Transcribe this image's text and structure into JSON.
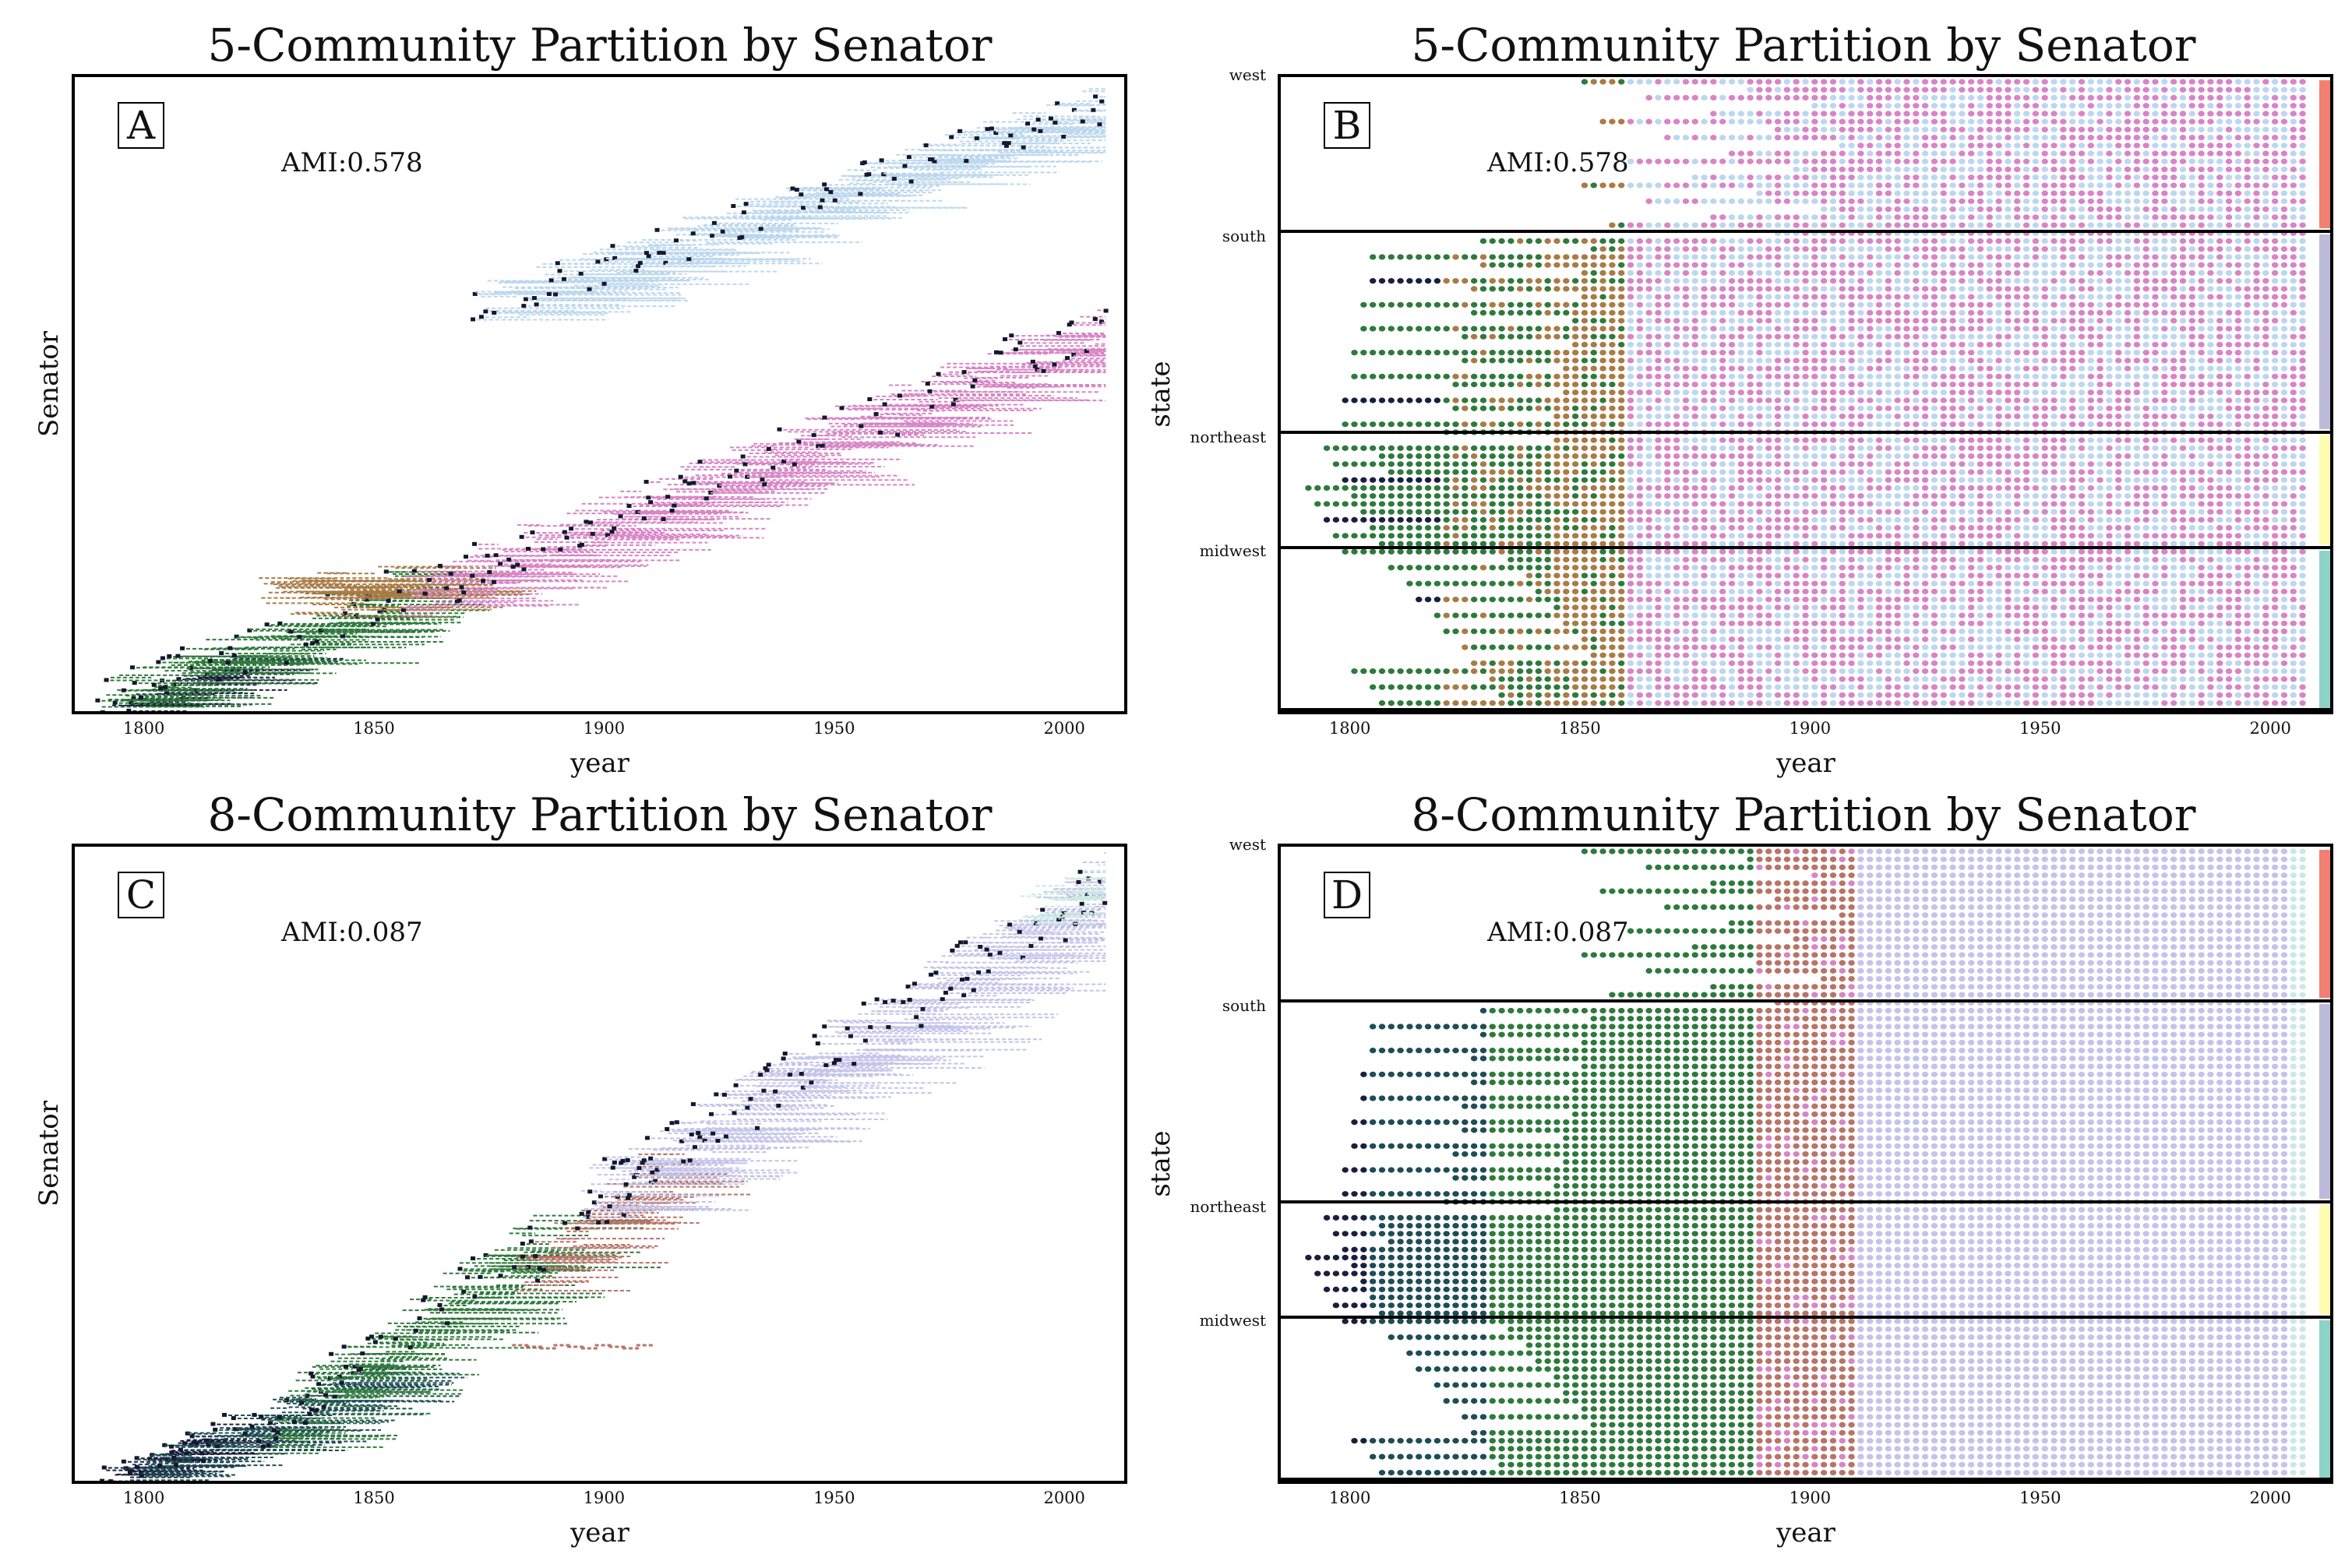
{
  "panels": [
    {
      "letter": "A",
      "title": "5-Community Partition by Senator",
      "ami": "AMI:0.578",
      "xlabel": "year",
      "ylabel": "Senator"
    },
    {
      "letter": "B",
      "title": "5-Community Partition by Senator",
      "ami": "AMI:0.578",
      "xlabel": "year",
      "ylabel": "state",
      "regions": [
        "west",
        "south",
        "northeast",
        "midwest"
      ]
    },
    {
      "letter": "C",
      "title": "8-Community Partition by Senator",
      "ami": "AMI:0.087",
      "xlabel": "year",
      "ylabel": "Senator"
    },
    {
      "letter": "D",
      "title": "8-Community Partition by Senator",
      "ami": "AMI:0.087",
      "xlabel": "year",
      "ylabel": "state",
      "regions": [
        "west",
        "south",
        "northeast",
        "midwest"
      ]
    }
  ],
  "colors": {
    "navy": "#1b1f3f",
    "teal_dark": "#1e4d55",
    "green": "#2e7a3c",
    "olive": "#6f7d2a",
    "brown": "#a97b45",
    "rust": "#b87468",
    "pink": "#d884c6",
    "lightblue": "#bcd7ee",
    "lavender": "#c4c3ea",
    "mint": "#cde9e4",
    "region_west": "#f28072",
    "region_south": "#bebad9",
    "region_northeast": "#fdfcb1",
    "region_midwest": "#8dd3c7"
  },
  "chart_data": [
    {
      "id": "A",
      "type": "scatter",
      "title": "5-Community Partition by Senator",
      "xlabel": "year",
      "ylabel": "Senator",
      "xlim": [
        1785,
        2013
      ],
      "xticks": [
        1800,
        1850,
        1900,
        1950,
        2000
      ],
      "annotation": "AMI:0.578",
      "series": [
        {
          "name": "community-navy",
          "x_range": [
            1789,
            1820
          ],
          "color": "navy"
        },
        {
          "name": "community-green",
          "x_range": [
            1789,
            1855
          ],
          "color": "green"
        },
        {
          "name": "community-brown",
          "x_range": [
            1825,
            1862
          ],
          "color": "brown"
        },
        {
          "name": "community-pink",
          "x_range": [
            1855,
            2009
          ],
          "color": "pink"
        },
        {
          "name": "community-lightblue",
          "x_range": [
            1871,
            2009
          ],
          "color": "lightblue"
        }
      ]
    },
    {
      "id": "B",
      "type": "scatter",
      "title": "5-Community Partition by Senator",
      "xlabel": "year",
      "ylabel": "state",
      "xlim": [
        1785,
        2013
      ],
      "xticks": [
        1800,
        1850,
        1900,
        1950,
        2000
      ],
      "annotation": "AMI:0.578",
      "regions": [
        "west",
        "south",
        "northeast",
        "midwest"
      ],
      "series": [
        {
          "name": "community-navy",
          "x_range": [
            1789,
            1820
          ],
          "color": "navy"
        },
        {
          "name": "community-green",
          "x_range": [
            1789,
            1845
          ],
          "color": "green"
        },
        {
          "name": "community-brown",
          "x_range": [
            1820,
            1861
          ],
          "color": "brown"
        },
        {
          "name": "community-pink",
          "x_range": [
            1856,
            2009
          ],
          "color": "pink"
        },
        {
          "name": "community-lightblue",
          "x_range": [
            1856,
            2009
          ],
          "color": "lightblue"
        }
      ]
    },
    {
      "id": "C",
      "type": "scatter",
      "title": "8-Community Partition by Senator",
      "xlabel": "year",
      "ylabel": "Senator",
      "xlim": [
        1785,
        2013
      ],
      "xticks": [
        1800,
        1850,
        1900,
        1950,
        2000
      ],
      "annotation": "AMI:0.087",
      "series": [
        {
          "name": "community-navy",
          "x_range": [
            1789,
            1815
          ],
          "color": "navy"
        },
        {
          "name": "community-teal",
          "x_range": [
            1795,
            1850
          ],
          "color": "teal_dark"
        },
        {
          "name": "community-green",
          "x_range": [
            1825,
            1885
          ],
          "color": "green"
        },
        {
          "name": "community-rust",
          "x_range": [
            1880,
            1912
          ],
          "color": "rust"
        },
        {
          "name": "community-lavender",
          "x_range": [
            1895,
            2009
          ],
          "color": "lavender"
        },
        {
          "name": "community-mint",
          "x_range": [
            1990,
            2009
          ],
          "color": "mint"
        }
      ]
    },
    {
      "id": "D",
      "type": "scatter",
      "title": "8-Community Partition by Senator",
      "xlabel": "year",
      "ylabel": "state",
      "xlim": [
        1785,
        2013
      ],
      "xticks": [
        1800,
        1850,
        1900,
        1950,
        2000
      ],
      "annotation": "AMI:0.087",
      "regions": [
        "west",
        "south",
        "northeast",
        "midwest"
      ],
      "series": [
        {
          "name": "community-navy",
          "x_range": [
            1789,
            1803
          ],
          "color": "navy"
        },
        {
          "name": "community-teal",
          "x_range": [
            1803,
            1830
          ],
          "color": "teal_dark"
        },
        {
          "name": "community-green",
          "x_range": [
            1830,
            1888
          ],
          "color": "green"
        },
        {
          "name": "community-rust",
          "x_range": [
            1888,
            1910
          ],
          "color": "rust"
        },
        {
          "name": "community-lavender",
          "x_range": [
            1910,
            2003
          ],
          "color": "lavender"
        },
        {
          "name": "community-mint",
          "x_range": [
            2003,
            2009
          ],
          "color": "mint"
        }
      ]
    }
  ]
}
